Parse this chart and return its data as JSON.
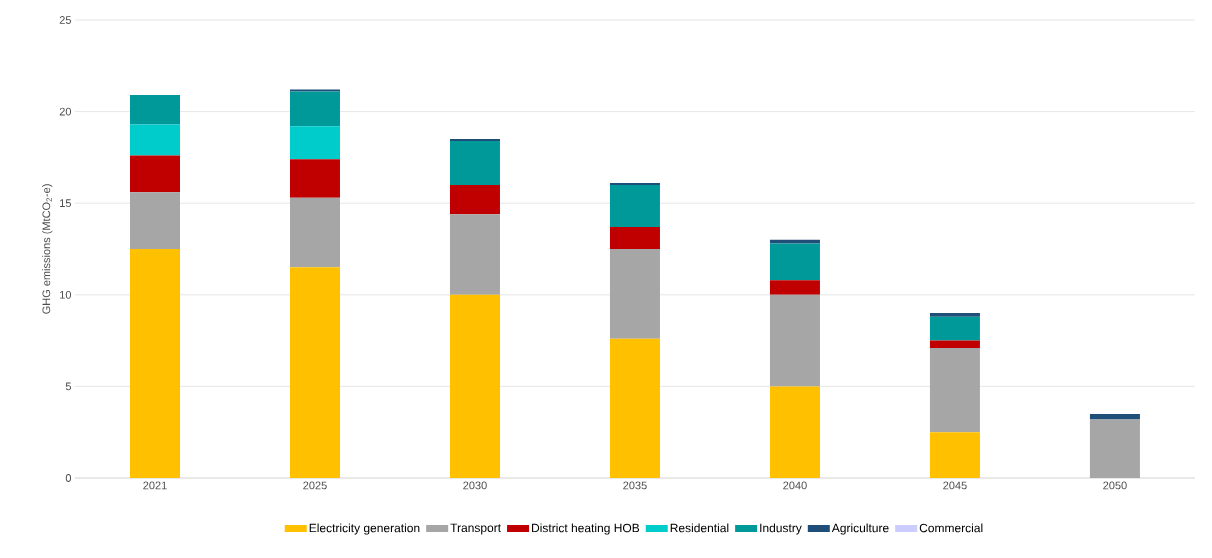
{
  "chart_data": {
    "type": "bar",
    "stacked": true,
    "ylabel": "GHG emissions (MtCO$_{2}$-e)",
    "categories": [
      "2021",
      "2025",
      "2030",
      "2035",
      "2040",
      "2045",
      "2050"
    ],
    "series": [
      {
        "name": "Electricity generation",
        "color": "#ffc000",
        "values": [
          12.5,
          11.5,
          10.0,
          7.6,
          5.0,
          2.5,
          0
        ]
      },
      {
        "name": "Transport",
        "color": "#a6a6a6",
        "values": [
          3.1,
          3.8,
          4.4,
          4.9,
          5.0,
          4.6,
          3.2
        ]
      },
      {
        "name": "District heating HOB",
        "color": "#c00000",
        "values": [
          2.0,
          2.1,
          1.6,
          1.2,
          0.8,
          0.4,
          0
        ]
      },
      {
        "name": "Residential",
        "color": "#00cccc",
        "values": [
          1.7,
          1.8,
          0,
          0,
          0,
          0,
          0
        ]
      },
      {
        "name": "Industry",
        "color": "#009999",
        "values": [
          1.6,
          1.9,
          2.4,
          2.3,
          2.0,
          1.3,
          0
        ]
      },
      {
        "name": "Agriculture",
        "color": "#1f4e79",
        "values": [
          0,
          0.1,
          0.1,
          0.1,
          0.2,
          0.2,
          0.3
        ]
      },
      {
        "name": "Commercial",
        "color": "#ccccff",
        "values": [
          0,
          0,
          0,
          0,
          0,
          0,
          0
        ]
      }
    ],
    "ylim": [
      0,
      25
    ],
    "yticks": [
      0,
      5,
      10,
      15,
      20,
      25
    ],
    "grid": "y",
    "legend": "bottom"
  }
}
